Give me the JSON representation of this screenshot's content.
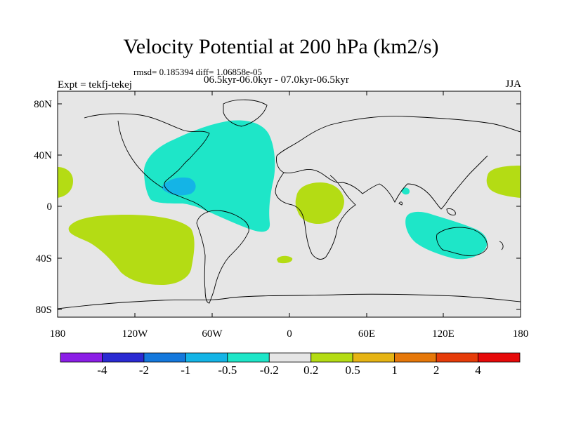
{
  "title": "Velocity Potential at 200 hPa (km2/s)",
  "stats": "rmsd= 0.185394 diff= 1.06858e-05",
  "period": "06.5kyr-06.0kyr - 07.0kyr-06.5kyr",
  "experiment": "Expt = tekfj-tekej",
  "season": "JJA",
  "axes": {
    "y_ticks": [
      "80N",
      "40N",
      "0",
      "40S",
      "80S"
    ],
    "x_ticks": [
      "180",
      "120W",
      "60W",
      "0",
      "60E",
      "120E",
      "180"
    ]
  },
  "colorbar": {
    "colors": [
      "#8b1ee6",
      "#2a2ad2",
      "#1478dc",
      "#14b4e6",
      "#1ee6c8",
      "#e6e6e6",
      "#b4dc14",
      "#e6b414",
      "#e6780a",
      "#e63c0a",
      "#e60a0a"
    ],
    "labels": [
      "-4",
      "-2",
      "-1",
      "-0.5",
      "-0.2",
      "0.2",
      "0.5",
      "1",
      "2",
      "4"
    ]
  },
  "colors": {
    "background": "#e6e6e6",
    "negative_weak": "#1ee6c8",
    "negative_mid": "#14b4e6",
    "positive_weak": "#b4dc14"
  }
}
